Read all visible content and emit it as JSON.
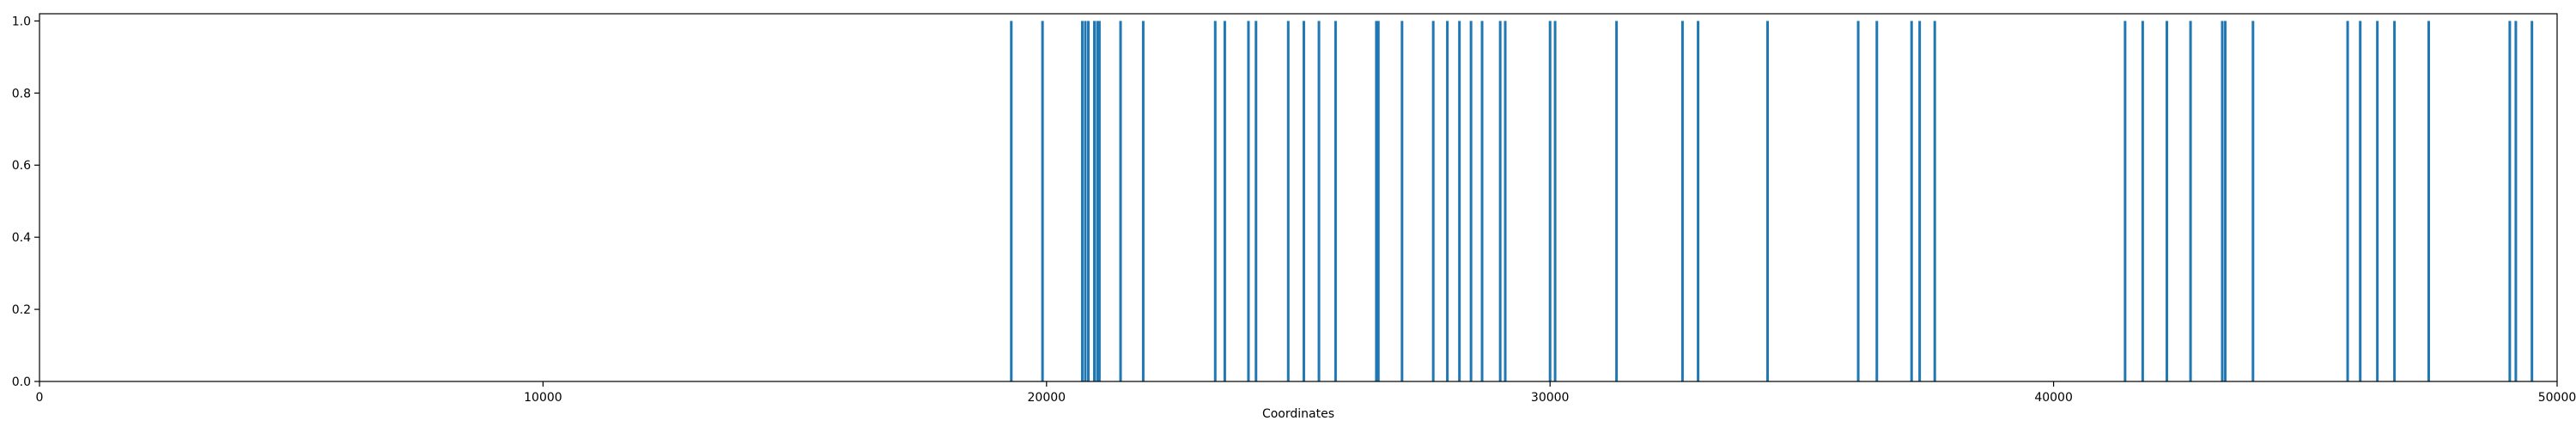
{
  "chart_data": {
    "type": "event-lines",
    "title": "",
    "xlabel": "Coordinates",
    "ylabel": "",
    "xlim": [
      0,
      50000
    ],
    "ylim": [
      0.0,
      1.02
    ],
    "x_ticks": [
      0,
      10000,
      20000,
      30000,
      40000,
      50000
    ],
    "y_ticks": [
      0.0,
      0.2,
      0.4,
      0.6,
      0.8,
      1.0
    ],
    "x_tick_labels": [
      "0",
      "10000",
      "20000",
      "30000",
      "40000",
      "50000"
    ],
    "y_tick_labels": [
      "0.0",
      "0.2",
      "0.4",
      "0.6",
      "0.8",
      "1.0"
    ],
    "grid": false,
    "line_height": 1.0,
    "color": "#1f77b4",
    "x": [
      19300,
      19920,
      20710,
      20770,
      20830,
      20950,
      21010,
      21050,
      21470,
      21920,
      23350,
      23540,
      24010,
      24160,
      24800,
      25110,
      25410,
      25740,
      26550,
      26590,
      27060,
      27680,
      27960,
      28200,
      28430,
      28650,
      29010,
      29110,
      30000,
      30100,
      31320,
      32630,
      32940,
      34320,
      36120,
      36490,
      37180,
      37340,
      37640,
      41420,
      41770,
      42250,
      42720,
      43350,
      43410,
      43960,
      45840,
      46090,
      46430,
      46770,
      47450,
      49060,
      49180,
      49500
    ]
  }
}
